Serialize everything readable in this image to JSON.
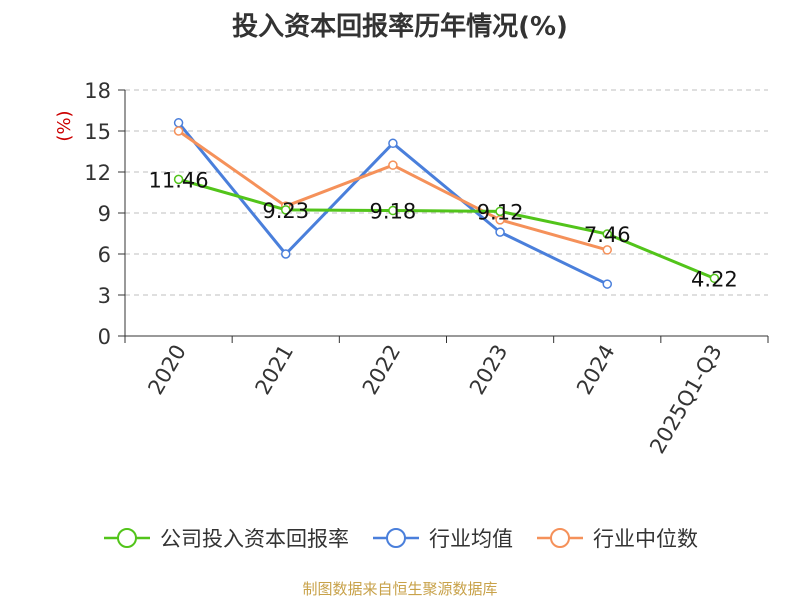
{
  "chart_data": {
    "type": "line",
    "title": "投入资本回报率历年情况(%)",
    "ylabel": "(%)",
    "xlabel": "",
    "categories": [
      "2020",
      "2021",
      "2022",
      "2023",
      "2024",
      "2025Q1-Q3"
    ],
    "ylim": [
      0,
      18
    ],
    "yticks": [
      0,
      3,
      6,
      9,
      12,
      15,
      18
    ],
    "grid": true,
    "legend_position": "bottom",
    "series": [
      {
        "name": "公司投入资本回报率",
        "color": "#52c41a",
        "values": [
          11.46,
          9.23,
          9.18,
          9.12,
          7.46,
          4.22
        ],
        "labels": [
          "11.46",
          "9.23",
          "9.18",
          "9.12",
          "7.46",
          "4.22"
        ]
      },
      {
        "name": "行业均值",
        "color": "#4a7fdb",
        "values": [
          15.6,
          6.0,
          14.1,
          7.6,
          3.8,
          null
        ]
      },
      {
        "name": "行业中位数",
        "color": "#f5915a",
        "values": [
          15.0,
          9.5,
          12.5,
          8.5,
          6.3,
          null
        ]
      }
    ],
    "source": "制图数据来自恒生聚源数据库",
    "source_color": "#c8a24a",
    "ylabel_color": "#cc0000"
  }
}
